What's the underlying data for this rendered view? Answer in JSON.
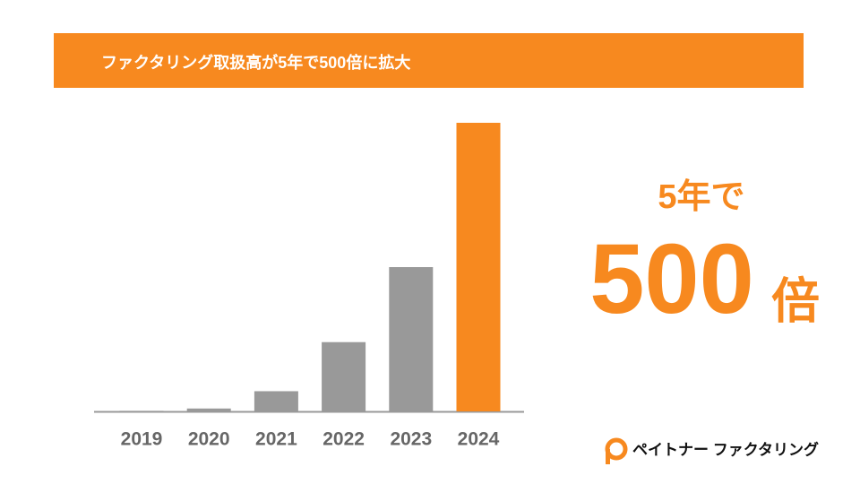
{
  "chart_data": {
    "type": "bar",
    "title": "ファクタリング取扱高が5年で500倍に拡大",
    "categories": [
      "2019",
      "2020",
      "2021",
      "2022",
      "2023",
      "2024"
    ],
    "values": [
      0.2,
      1,
      7,
      24,
      50,
      100
    ],
    "colors": [
      "#999999",
      "#999999",
      "#999999",
      "#999999",
      "#999999",
      "#f7891f"
    ],
    "ylim": [
      0,
      100
    ],
    "annotation": {
      "line1": "5年で",
      "number": "500",
      "unit": "倍"
    },
    "brand": "ペイトナー ファクタリング"
  }
}
